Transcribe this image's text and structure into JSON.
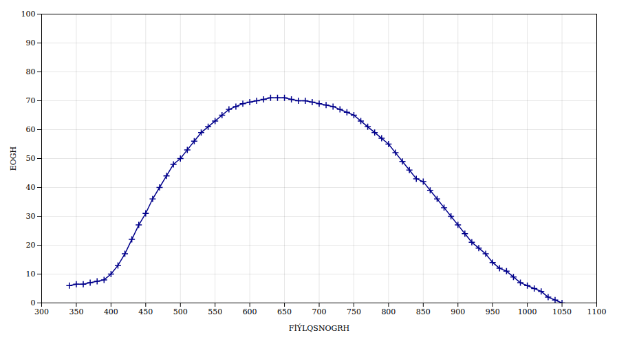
{
  "chart_data": {
    "type": "line",
    "xlabel": "FİÝLQSNOGRH",
    "ylabel": "EOGH",
    "x": [
      340,
      350,
      360,
      370,
      380,
      390,
      400,
      410,
      420,
      430,
      440,
      450,
      460,
      470,
      480,
      490,
      500,
      510,
      520,
      530,
      540,
      550,
      560,
      570,
      580,
      590,
      600,
      610,
      620,
      630,
      640,
      650,
      660,
      670,
      680,
      690,
      700,
      710,
      720,
      730,
      740,
      750,
      760,
      770,
      780,
      790,
      800,
      810,
      820,
      830,
      840,
      850,
      860,
      870,
      880,
      890,
      900,
      910,
      920,
      930,
      940,
      950,
      960,
      970,
      980,
      990,
      1000,
      1010,
      1020,
      1030,
      1040,
      1050
    ],
    "values": [
      6,
      6.5,
      6.5,
      7,
      7.5,
      8,
      10,
      13,
      17,
      22,
      27,
      31,
      36,
      40,
      44,
      48,
      50,
      53,
      56,
      59,
      61,
      63,
      65,
      67,
      68,
      69,
      69.5,
      70,
      70.5,
      71,
      71,
      71,
      70.5,
      70,
      70,
      69.5,
      69,
      68.5,
      68,
      67,
      66,
      65,
      63,
      61,
      59,
      57,
      55,
      52,
      49,
      46,
      43,
      42,
      39,
      36,
      33,
      30,
      27,
      24,
      21,
      19,
      17,
      14,
      12,
      11,
      9,
      7,
      6,
      5,
      4,
      2,
      1,
      0
    ],
    "color": "#00008B",
    "marker": "plus",
    "xlim": [
      300,
      1100
    ],
    "ylim": [
      0,
      100
    ],
    "xticks": [
      300,
      350,
      400,
      450,
      500,
      550,
      600,
      650,
      700,
      750,
      800,
      850,
      900,
      950,
      1000,
      1050,
      1100
    ],
    "yticks": [
      0,
      10,
      20,
      30,
      40,
      50,
      60,
      70,
      80,
      90,
      100
    ],
    "grid": true
  }
}
